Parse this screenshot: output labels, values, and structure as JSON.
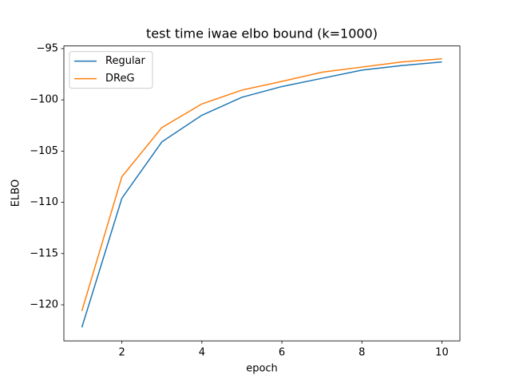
{
  "chart_data": {
    "type": "line",
    "title": "test time iwae elbo bound (k=1000)",
    "x_label": "epoch",
    "y_label": "ELBO",
    "x": [
      1,
      2,
      3,
      4,
      5,
      6,
      7,
      8,
      9,
      10
    ],
    "series": [
      {
        "name": "Regular",
        "color": "#1f77b4",
        "values": [
          -122.2,
          -109.6,
          -104.1,
          -101.5,
          -99.75,
          -98.7,
          -97.9,
          -97.1,
          -96.65,
          -96.3
        ]
      },
      {
        "name": "DReG",
        "color": "#ff7f0e",
        "values": [
          -120.6,
          -107.5,
          -102.7,
          -100.4,
          -99.05,
          -98.2,
          -97.3,
          -96.8,
          -96.3,
          -96.0
        ]
      }
    ],
    "xlim": [
      0.55,
      10.45
    ],
    "ylim": [
      -123.52,
      -94.74
    ],
    "xticks": [
      2,
      4,
      6,
      8,
      10
    ],
    "yticks": [
      {
        "value": -120,
        "label": "−120"
      },
      {
        "value": -115,
        "label": "−115"
      },
      {
        "value": -110,
        "label": "−110"
      },
      {
        "value": -105,
        "label": "−105"
      },
      {
        "value": -100,
        "label": "−100"
      },
      {
        "value": -95,
        "label": "−95"
      }
    ],
    "legend": "upper left",
    "grid": false
  }
}
